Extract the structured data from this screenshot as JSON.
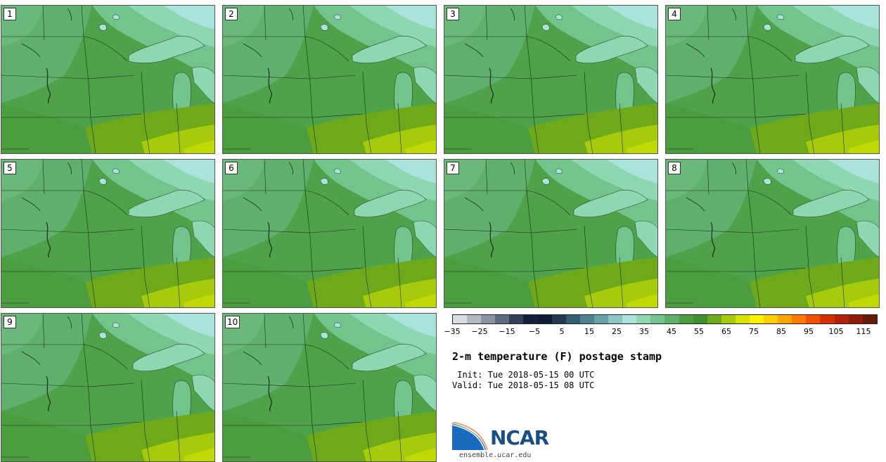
{
  "panels": [
    {
      "label": "1",
      "variant": 0
    },
    {
      "label": "2",
      "variant": 1
    },
    {
      "label": "3",
      "variant": 2
    },
    {
      "label": "4",
      "variant": 1
    },
    {
      "label": "5",
      "variant": 0
    },
    {
      "label": "6",
      "variant": 2
    },
    {
      "label": "7",
      "variant": 1
    },
    {
      "label": "8",
      "variant": 0
    },
    {
      "label": "9",
      "variant": 2
    },
    {
      "label": "10",
      "variant": 1
    }
  ],
  "colorbar": {
    "colors": [
      "#d9dde3",
      "#b3b9c3",
      "#8a93a3",
      "#5e6a80",
      "#34405a",
      "#142039",
      "#0f1b33",
      "#26384f",
      "#365e71",
      "#4f8291",
      "#6aa1a8",
      "#8cc7c4",
      "#a9e3dc",
      "#8fd7b1",
      "#72c48c",
      "#5fb06d",
      "#4b9d40",
      "#3f8f2c",
      "#6ea91a",
      "#a6cb0b",
      "#d7e103",
      "#fff200",
      "#ffce00",
      "#ffa400",
      "#ff7a00",
      "#f25000",
      "#d33103",
      "#b22207",
      "#8d1d0a",
      "#661a0c"
    ],
    "ticks": [
      "−35",
      "−25",
      "−15",
      "−5",
      "5",
      "15",
      "25",
      "35",
      "45",
      "55",
      "65",
      "75",
      "85",
      "95",
      "105",
      "115"
    ]
  },
  "title": "2-m temperature (F) postage stamp",
  "init": " Init: Tue 2018-05-15 00 UTC",
  "valid": "Valid: Tue 2018-05-15 08 UTC",
  "logo": {
    "text": "NCAR",
    "site": "ensemble.ucar.edu"
  }
}
